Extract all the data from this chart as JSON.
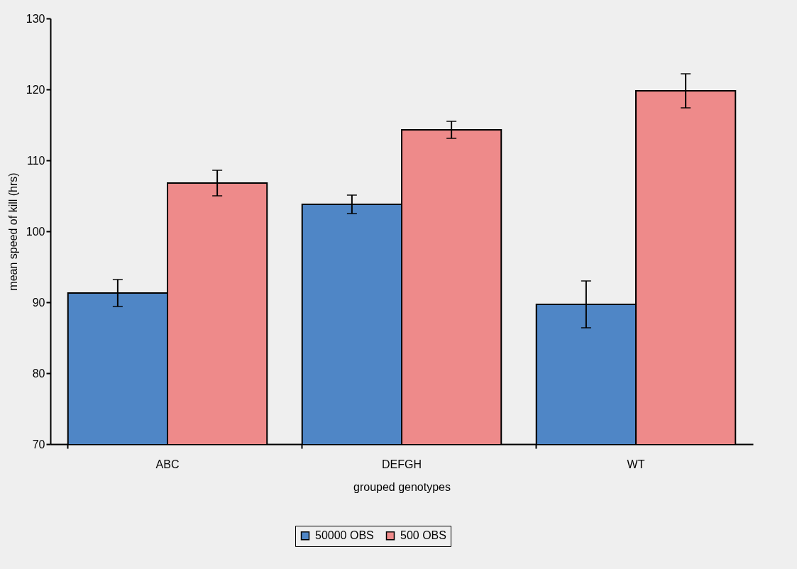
{
  "chart_data": {
    "type": "bar",
    "xlabel": "grouped genotypes",
    "ylabel": "mean speed of kill (hrs)",
    "categories": [
      "ABC",
      "DEFGH",
      "WT"
    ],
    "series": [
      {
        "name": "50000 OBS",
        "color": "#4f86c6",
        "values": [
          91.3,
          103.8,
          89.7
        ],
        "errors": [
          1.9,
          1.3,
          3.3
        ]
      },
      {
        "name": "500 OBS",
        "color": "#ee8a8a",
        "values": [
          106.8,
          114.3,
          119.8
        ],
        "errors": [
          1.8,
          1.2,
          2.4
        ]
      }
    ],
    "ylim": [
      70,
      130
    ],
    "yticks": [
      70,
      80,
      90,
      100,
      110,
      120,
      130
    ],
    "grid": false,
    "legend": "bottom"
  }
}
